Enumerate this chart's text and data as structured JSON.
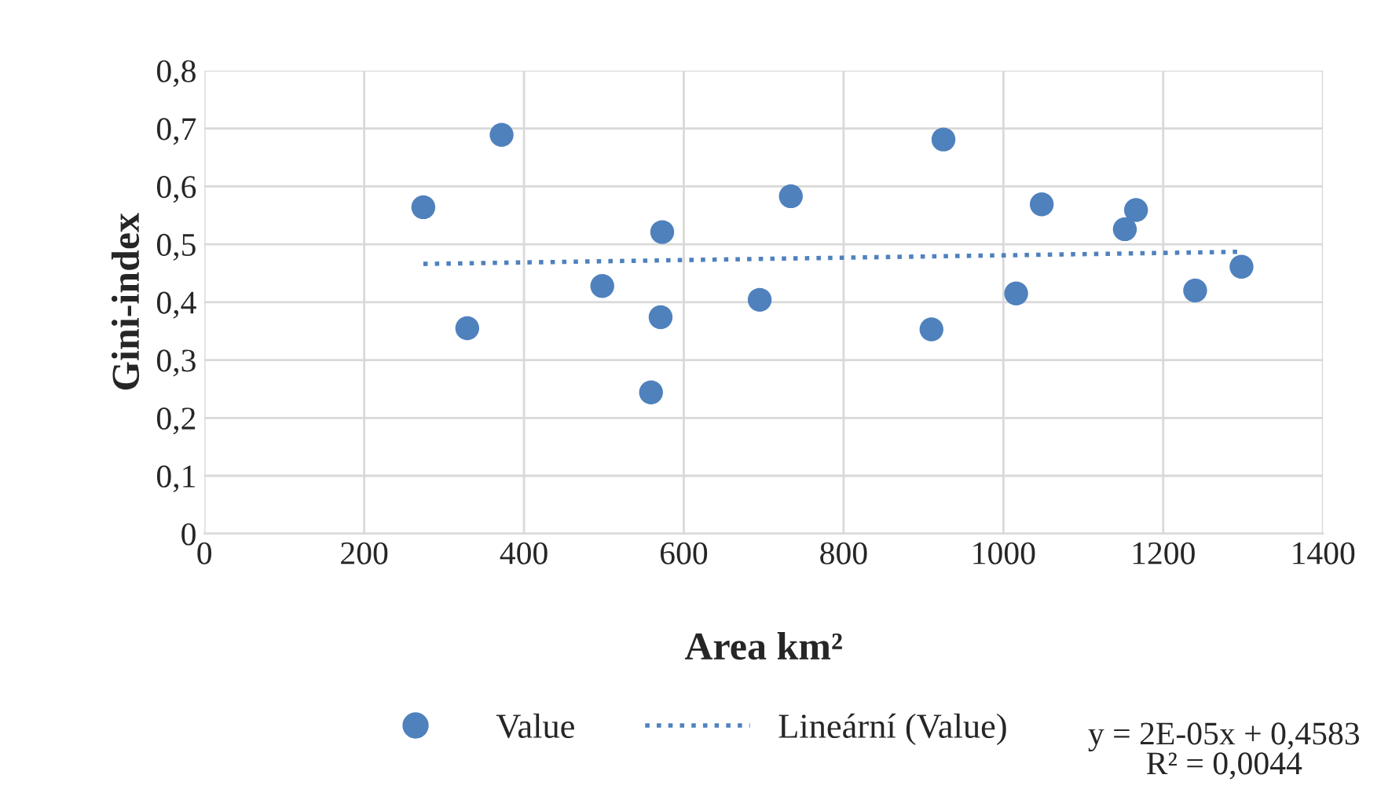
{
  "chart_data": {
    "type": "scatter",
    "xlabel": "Area km²",
    "ylabel": "Gini-index",
    "xlim": [
      0,
      1400
    ],
    "xticks": [
      0,
      200,
      400,
      600,
      800,
      1000,
      1200,
      1400
    ],
    "ylim": [
      0,
      0.8
    ],
    "yticks": [
      0,
      {
        "value": 0.1,
        "label": "0,1"
      },
      {
        "value": 0.2,
        "label": "0,2"
      },
      {
        "value": 0.3,
        "label": "0,3"
      },
      {
        "value": 0.4,
        "label": "0,4"
      },
      {
        "value": 0.5,
        "label": "0,5"
      },
      {
        "value": 0.6,
        "label": "0,6"
      },
      {
        "value": 0.7,
        "label": "0,7"
      },
      {
        "value": 0.8,
        "label": "0,8"
      }
    ],
    "grid": true,
    "legend": "bottom",
    "series": [
      {
        "name": "Value",
        "marker": "circle",
        "color": "#4f81bd",
        "x": [
          274,
          329,
          372,
          498,
          559,
          573,
          571,
          695,
          734,
          910,
          925,
          1016,
          1048,
          1152,
          1166,
          1240,
          1298
        ],
        "values": [
          0.564,
          0.355,
          0.689,
          0.428,
          0.244,
          0.521,
          0.374,
          0.404,
          0.583,
          0.353,
          0.681,
          0.415,
          0.569,
          0.526,
          0.559,
          0.42,
          0.461
        ]
      },
      {
        "name": "Lineární (Value)",
        "type": "line",
        "line_style": "dotted",
        "marker": "none",
        "color": "#4f81bd",
        "x": [
          274,
          1298
        ],
        "values": [
          0.466,
          0.487
        ]
      }
    ],
    "annotations": [
      "y = 2E-05x + 0,4583\nR² = 0,0044"
    ]
  }
}
